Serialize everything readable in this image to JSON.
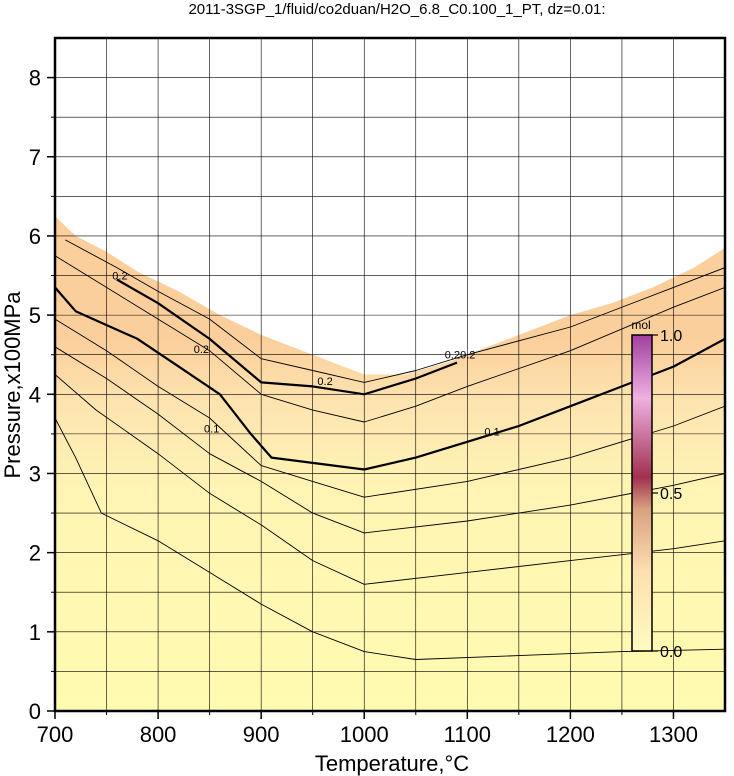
{
  "chart_data": {
    "type": "contour",
    "title": "2011-3SGP_1/fluid/co2duan/H2O_6.8_C0.100_1_PT, dz=0.01:",
    "xlabel": "Temperature,°C",
    "ylabel": "Pressure,x100MPa",
    "xlim": [
      700,
      1350
    ],
    "ylim": [
      0,
      8.5
    ],
    "x_ticks": [
      700,
      800,
      900,
      1000,
      1100,
      1200,
      1300
    ],
    "y_ticks": [
      0,
      1,
      2,
      3,
      4,
      5,
      6,
      7,
      8
    ],
    "grid": true,
    "contour_interval": 0.01,
    "field_boundary": [
      [
        700,
        6.25
      ],
      [
        720,
        6.0
      ],
      [
        750,
        5.8
      ],
      [
        780,
        5.55
      ],
      [
        820,
        5.3
      ],
      [
        860,
        5.0
      ],
      [
        900,
        4.75
      ],
      [
        940,
        4.55
      ],
      [
        980,
        4.35
      ],
      [
        1000,
        4.25
      ],
      [
        1040,
        4.25
      ],
      [
        1080,
        4.4
      ],
      [
        1120,
        4.6
      ],
      [
        1160,
        4.8
      ],
      [
        1200,
        5.0
      ],
      [
        1240,
        5.15
      ],
      [
        1280,
        5.35
      ],
      [
        1320,
        5.6
      ],
      [
        1350,
        5.85
      ]
    ],
    "contour_lines": [
      {
        "level": 0.1,
        "labeled": true,
        "points": [
          [
            700,
            5.35
          ],
          [
            720,
            5.05
          ],
          [
            780,
            4.7
          ],
          [
            820,
            4.35
          ],
          [
            860,
            4.0
          ],
          [
            890,
            3.5
          ],
          [
            910,
            3.2
          ],
          [
            1000,
            3.05
          ],
          [
            1050,
            3.2
          ],
          [
            1100,
            3.4
          ],
          [
            1150,
            3.6
          ],
          [
            1200,
            3.85
          ],
          [
            1250,
            4.1
          ],
          [
            1300,
            4.35
          ],
          [
            1350,
            4.7
          ]
        ]
      },
      {
        "level": 0.2,
        "labeled": true,
        "points": [
          [
            760,
            5.45
          ],
          [
            800,
            5.15
          ],
          [
            850,
            4.7
          ],
          [
            900,
            4.15
          ],
          [
            950,
            4.1
          ],
          [
            1000,
            4.0
          ],
          [
            1050,
            4.2
          ],
          [
            1090,
            4.4
          ]
        ]
      },
      {
        "level": null,
        "labeled": false,
        "points": [
          [
            700,
            3.7
          ],
          [
            720,
            3.2
          ],
          [
            745,
            2.5
          ],
          [
            800,
            2.15
          ],
          [
            850,
            1.75
          ],
          [
            900,
            1.35
          ],
          [
            950,
            1.0
          ],
          [
            1000,
            0.75
          ],
          [
            1050,
            0.65
          ],
          [
            1150,
            0.7
          ],
          [
            1250,
            0.75
          ],
          [
            1350,
            0.78
          ]
        ]
      },
      {
        "level": null,
        "labeled": false,
        "points": [
          [
            700,
            4.25
          ],
          [
            740,
            3.8
          ],
          [
            800,
            3.25
          ],
          [
            850,
            2.75
          ],
          [
            900,
            2.35
          ],
          [
            950,
            1.9
          ],
          [
            1000,
            1.6
          ],
          [
            1100,
            1.75
          ],
          [
            1200,
            1.9
          ],
          [
            1300,
            2.05
          ],
          [
            1350,
            2.15
          ]
        ]
      },
      {
        "level": null,
        "labeled": false,
        "points": [
          [
            700,
            4.6
          ],
          [
            750,
            4.2
          ],
          [
            800,
            3.75
          ],
          [
            850,
            3.25
          ],
          [
            900,
            2.9
          ],
          [
            950,
            2.5
          ],
          [
            1000,
            2.25
          ],
          [
            1100,
            2.4
          ],
          [
            1200,
            2.6
          ],
          [
            1300,
            2.85
          ],
          [
            1350,
            3.0
          ]
        ]
      },
      {
        "level": null,
        "labeled": false,
        "points": [
          [
            700,
            4.95
          ],
          [
            750,
            4.55
          ],
          [
            800,
            4.1
          ],
          [
            850,
            3.7
          ],
          [
            900,
            3.1
          ],
          [
            950,
            2.9
          ],
          [
            1000,
            2.7
          ],
          [
            1100,
            2.9
          ],
          [
            1200,
            3.2
          ],
          [
            1300,
            3.6
          ],
          [
            1350,
            3.85
          ]
        ]
      },
      {
        "level": null,
        "labeled": false,
        "points": [
          [
            700,
            5.75
          ],
          [
            750,
            5.35
          ],
          [
            800,
            4.95
          ],
          [
            850,
            4.55
          ],
          [
            900,
            4.0
          ],
          [
            950,
            3.8
          ],
          [
            1000,
            3.65
          ],
          [
            1050,
            3.85
          ],
          [
            1100,
            4.1
          ],
          [
            1200,
            4.55
          ],
          [
            1300,
            5.1
          ],
          [
            1350,
            5.35
          ]
        ]
      },
      {
        "level": null,
        "labeled": false,
        "points": [
          [
            710,
            5.95
          ],
          [
            760,
            5.6
          ],
          [
            800,
            5.3
          ],
          [
            850,
            4.95
          ],
          [
            900,
            4.45
          ],
          [
            950,
            4.3
          ],
          [
            1000,
            4.15
          ],
          [
            1050,
            4.3
          ],
          [
            1100,
            4.5
          ],
          [
            1200,
            4.85
          ],
          [
            1300,
            5.35
          ],
          [
            1350,
            5.6
          ]
        ]
      }
    ],
    "contour_labels": [
      {
        "text": "0.2",
        "x": 763,
        "y": 5.45
      },
      {
        "text": "0.2",
        "x": 842,
        "y": 4.52
      },
      {
        "text": "0.2",
        "x": 962,
        "y": 4.12
      },
      {
        "text": "0.1",
        "x": 852,
        "y": 3.52
      },
      {
        "text": "0.1",
        "x": 1124,
        "y": 3.48
      },
      {
        "text": "0.20.2",
        "x": 1093,
        "y": 4.45
      }
    ],
    "colorbar": {
      "unit": "mol",
      "range": [
        0.0,
        1.0
      ],
      "ticks": [
        "0.0",
        "0.5",
        "1.0"
      ],
      "colors": [
        "#fffbc0",
        "#ffe0b0",
        "#d8a080",
        "#a03050",
        "#f0b0e0",
        "#a040a0"
      ]
    }
  }
}
